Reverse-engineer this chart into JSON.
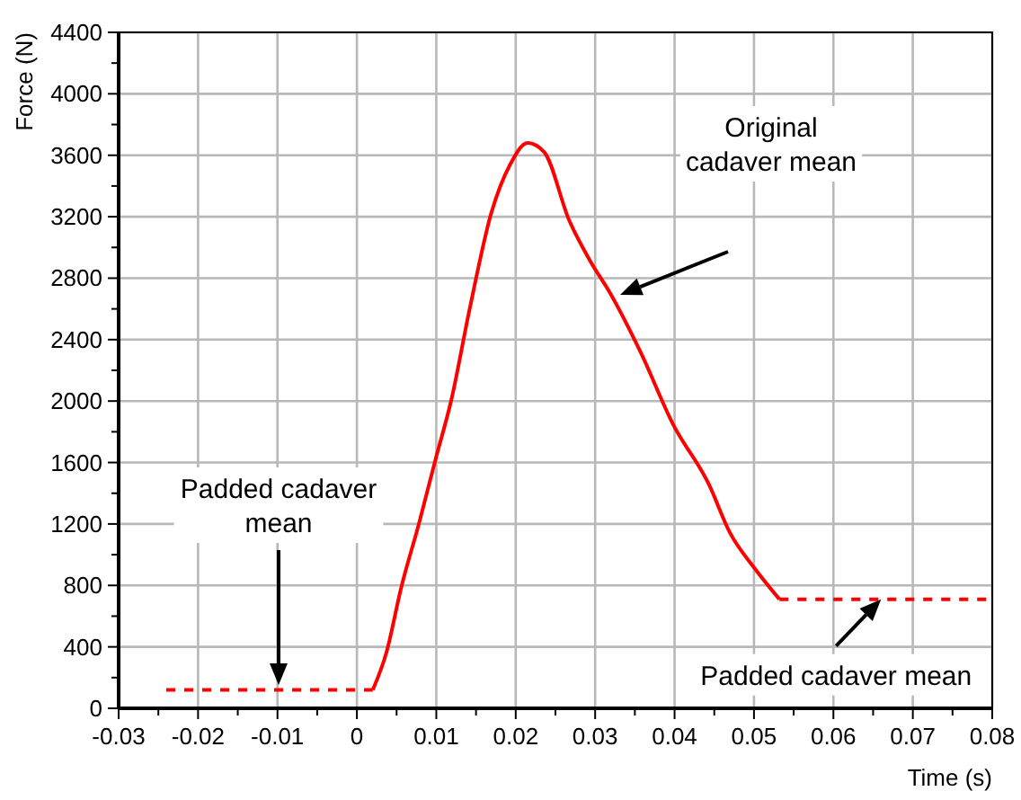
{
  "chart_data": {
    "type": "line",
    "xlabel": "Time (s)",
    "ylabel": "Force (N)",
    "xlim": [
      -0.03,
      0.08
    ],
    "ylim": [
      0,
      4400
    ],
    "xticks": [
      -0.03,
      {
        "value": -0.025,
        "label": null
      },
      -0.02,
      {
        "value": -0.015,
        "label": null
      },
      -0.01,
      {
        "value": -0.005,
        "label": null
      },
      0,
      {
        "value": 0.005,
        "label": null
      },
      0.01,
      {
        "value": 0.015,
        "label": null
      },
      0.02,
      {
        "value": 0.025,
        "label": null
      },
      0.03,
      {
        "value": 0.035,
        "label": null
      },
      0.04,
      {
        "value": 0.045,
        "label": null
      },
      0.05,
      {
        "value": 0.055,
        "label": null
      },
      0.06,
      {
        "value": 0.065,
        "label": null
      },
      0.07,
      {
        "value": 0.075,
        "label": null
      },
      0.08
    ],
    "yticks": [
      0,
      {
        "value": 200,
        "label": null
      },
      400,
      {
        "value": 600,
        "label": null
      },
      800,
      {
        "value": 1000,
        "label": null
      },
      1200,
      {
        "value": 1400,
        "label": null
      },
      1600,
      {
        "value": 1800,
        "label": null
      },
      2000,
      {
        "value": 2200,
        "label": null
      },
      2400,
      {
        "value": 2600,
        "label": null
      },
      2800,
      {
        "value": 3000,
        "label": null
      },
      3200,
      {
        "value": 3400,
        "label": null
      },
      3600,
      {
        "value": 3800,
        "label": null
      },
      4000,
      {
        "value": 4200,
        "label": null
      },
      4400
    ],
    "grid": true,
    "marker": "none",
    "series": [
      {
        "color": "#ff0000",
        "line_style": "dashed",
        "x": [
          -0.024,
          0.002
        ],
        "values": [
          120,
          120
        ]
      },
      {
        "color": "#ff0000",
        "line_style": "solid",
        "x": [
          0.002,
          0.0037,
          0.0056,
          0.0078,
          0.0099,
          0.0119,
          0.0142,
          0.0169,
          0.0193,
          0.0215,
          0.0236,
          0.0267,
          0.0294,
          0.0318,
          0.0357,
          0.0398,
          0.0443,
          0.047,
          0.0501,
          0.0532
        ],
        "values": [
          120,
          360,
          790,
          1200,
          1620,
          2010,
          2600,
          3220,
          3540,
          3680,
          3620,
          3180,
          2910,
          2710,
          2320,
          1850,
          1460,
          1140,
          910,
          710
        ]
      },
      {
        "color": "#ff0000",
        "line_style": "dashed",
        "x": [
          0.0532,
          0.08
        ],
        "values": [
          710,
          710
        ]
      }
    ],
    "annotations": [
      "Original\ncadaver mean",
      "Padded cadaver\nmean",
      {
        "text": "Padded cadaver mean",
        "x": 0.066,
        "y": 710
      }
    ]
  }
}
